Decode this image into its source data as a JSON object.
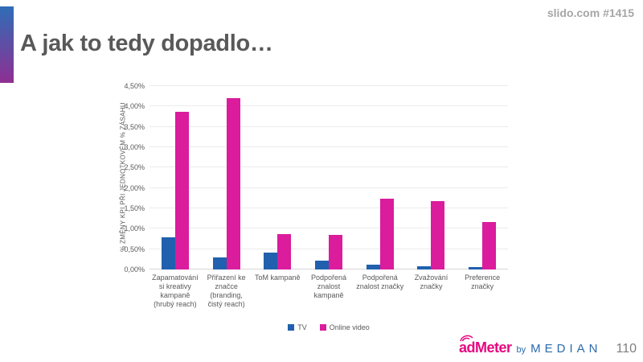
{
  "slide": {
    "title": "A jak to tedy dopadlo…",
    "slido_reference": "slido.com #1415",
    "page_number": "110"
  },
  "accent_bar": {
    "color_top": "#2f6db7",
    "color_bottom": "#8e2f92"
  },
  "chart_data": {
    "type": "bar",
    "title": "",
    "xlabel": "",
    "ylabel": "% ZMĚNY KPI PŘI JEDNOTKOVÉM % ZÁSAHU",
    "ylim": [
      0,
      4.5
    ],
    "ytick_step": 0.5,
    "ytick_labels": [
      "0,00%",
      "0,50%",
      "1,00%",
      "1,50%",
      "2,00%",
      "2,50%",
      "3,00%",
      "3,50%",
      "4,00%",
      "4,50%"
    ],
    "grid": true,
    "legend_position": "bottom",
    "categories": [
      "Zapamatování\nsi kreativy\nkampaně\n(hrubý reach)",
      "Přiřazení ke\nznačce\n(branding,\nčistý reach)",
      "ToM kampaně",
      "Podpořená\nznalost\nkampaně",
      "Podpořená\nznalost značky",
      "Zvažování\nznačky",
      "Preference\nznačky"
    ],
    "series": [
      {
        "name": "TV",
        "color": "#2060ae",
        "values": [
          0.78,
          0.3,
          0.41,
          0.22,
          0.12,
          0.07,
          0.05
        ]
      },
      {
        "name": "Online video",
        "color": "#da1c9d",
        "values": [
          3.86,
          4.21,
          0.87,
          0.85,
          1.73,
          1.67,
          1.17
        ]
      }
    ]
  },
  "footer": {
    "logo": {
      "ad": "ad",
      "meter": "Meter",
      "by": "by",
      "median": "MEDIAN",
      "pink": "#e5077f",
      "blue": "#2a6bad"
    }
  }
}
